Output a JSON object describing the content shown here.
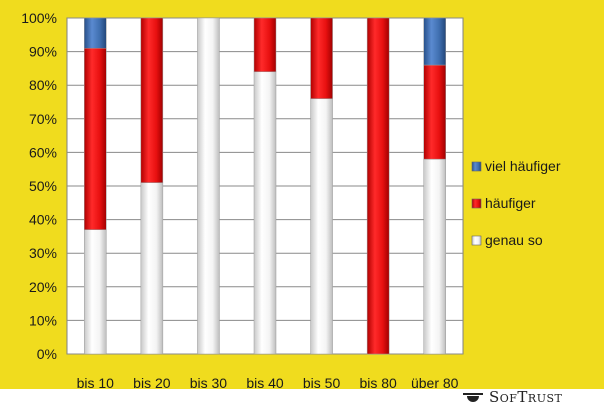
{
  "chart_data": {
    "type": "bar",
    "stacked": true,
    "categories": [
      "bis 10",
      "bis 20",
      "bis 30",
      "bis 40",
      "bis 50",
      "bis 80",
      "über 80"
    ],
    "series": [
      {
        "name": "genau so",
        "values": [
          37,
          51,
          100,
          84,
          76,
          0,
          58
        ],
        "color": "#ffffff"
      },
      {
        "name": "häufiger",
        "values": [
          54,
          49,
          0,
          16,
          24,
          100,
          28
        ],
        "color": "#e81010"
      },
      {
        "name": "viel häufiger",
        "values": [
          9,
          0,
          0,
          0,
          0,
          0,
          14
        ],
        "color": "#3f6fb0"
      }
    ],
    "y_tick_labels": [
      "0%",
      "10%",
      "20%",
      "30%",
      "40%",
      "50%",
      "60%",
      "70%",
      "80%",
      "90%",
      "100%"
    ],
    "ylim": [
      0,
      100
    ],
    "grid": true,
    "legend": {
      "position": "right",
      "entries": [
        "viel häufiger",
        "häufiger",
        "genau so"
      ]
    },
    "background_color": "#f0dc1e",
    "plot_background_color": "#ffffff"
  },
  "logo": {
    "text": "SofTrust"
  }
}
